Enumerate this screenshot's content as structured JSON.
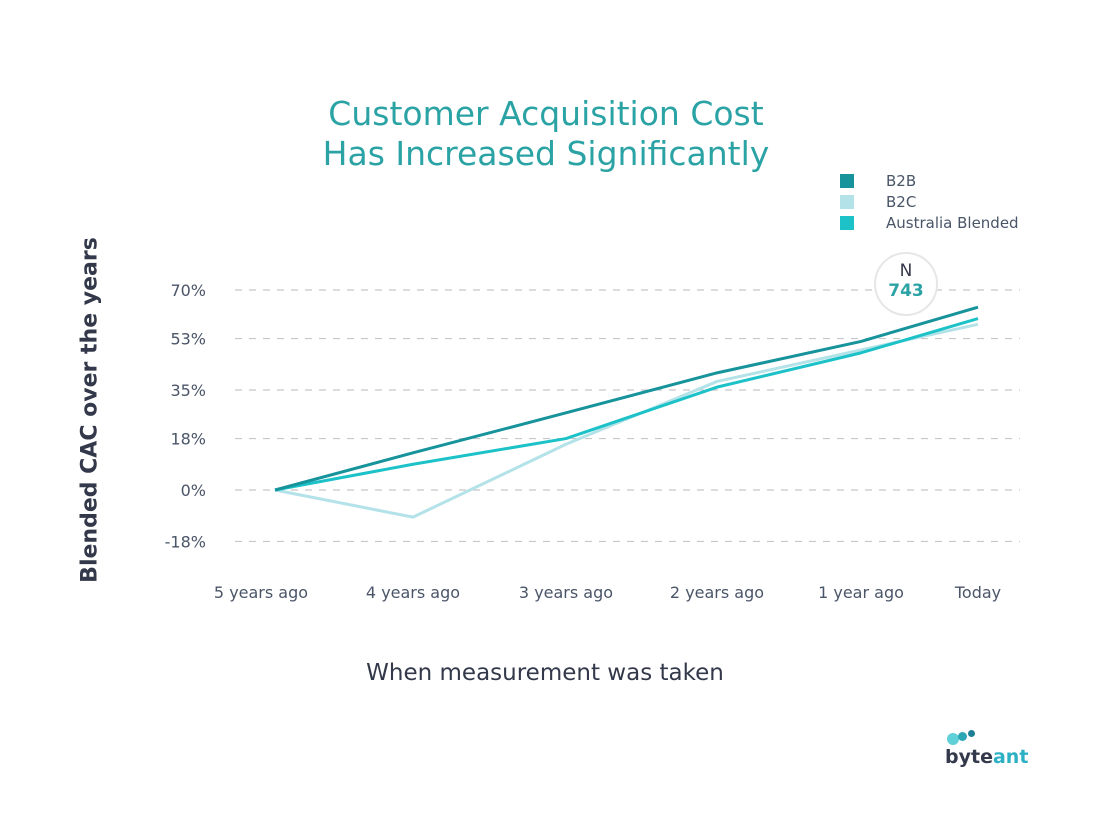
{
  "chart_data": {
    "type": "line",
    "title": "Customer Acquisition Cost Has Increased Significantly",
    "title_lines": [
      "Customer Acquisition Cost",
      "Has Increased Significantly"
    ],
    "xlabel": "When measurement was taken",
    "ylabel": "Blended CAC over the years",
    "categories": [
      "5 years ago",
      "4 years ago",
      "3 years ago",
      "2 years ago",
      "1 year ago",
      "Today"
    ],
    "y_ticks": [
      70,
      53,
      35,
      18,
      0,
      -18
    ],
    "y_tick_labels": [
      "70%",
      "53%",
      "35%",
      "18%",
      "0%",
      "-18%"
    ],
    "ylim": [
      -18,
      70
    ],
    "grid": "dashed-horizontal",
    "legend_position": "top-right",
    "series": [
      {
        "name": "B2B",
        "color": "#17939c",
        "values": [
          0,
          13,
          27,
          41,
          52,
          64
        ]
      },
      {
        "name": "B2C",
        "color": "#b3e2e8",
        "values": [
          0,
          -9.5,
          16,
          38,
          49,
          58
        ]
      },
      {
        "name": "Australia Blended",
        "color": "#1cc2c8",
        "values": [
          0,
          9,
          18,
          36,
          48,
          60
        ]
      }
    ],
    "annotation": {
      "label": "N",
      "value": "743"
    }
  },
  "brand": {
    "part1": "byte",
    "part2": "ant"
  }
}
